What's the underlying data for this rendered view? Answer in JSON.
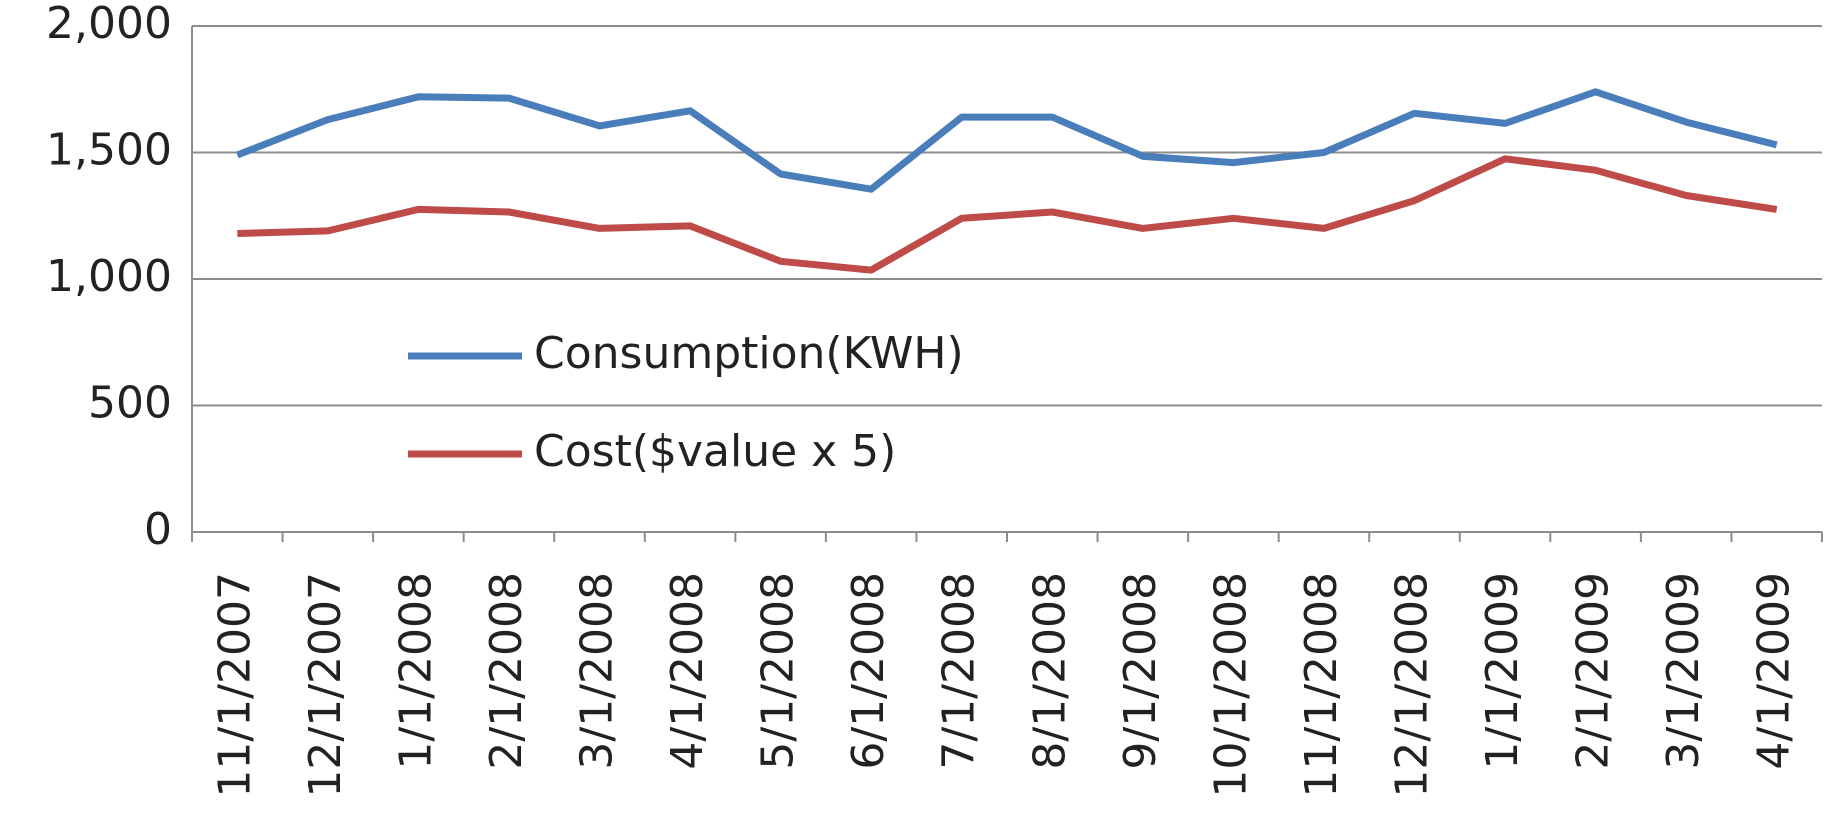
{
  "chart_data": {
    "type": "line",
    "categories": [
      "11/1/2007",
      "12/1/2007",
      "1/1/2008",
      "2/1/2008",
      "3/1/2008",
      "4/1/2008",
      "5/1/2008",
      "6/1/2008",
      "7/1/2008",
      "8/1/2008",
      "9/1/2008",
      "10/1/2008",
      "11/1/2008",
      "12/1/2008",
      "1/1/2009",
      "2/1/2009",
      "3/1/2009",
      "4/1/2009"
    ],
    "series": [
      {
        "name": "Consumption(KWH)",
        "color": "#4a7ebb",
        "values": [
          1490,
          1630,
          1720,
          1715,
          1605,
          1665,
          1415,
          1355,
          1640,
          1640,
          1485,
          1460,
          1500,
          1655,
          1615,
          1740,
          1620,
          1530
        ]
      },
      {
        "name": "Cost($value x 5)",
        "color": "#be4b48",
        "values": [
          1180,
          1190,
          1275,
          1265,
          1200,
          1210,
          1070,
          1035,
          1240,
          1265,
          1200,
          1240,
          1200,
          1310,
          1475,
          1430,
          1330,
          1275
        ]
      }
    ],
    "ylim": [
      0,
      2000
    ],
    "yticks": [
      0,
      {
        "value": 500,
        "label": "500"
      },
      {
        "value": 1000,
        "label": "1,000"
      },
      {
        "value": 1500,
        "label": "1,500"
      },
      {
        "value": 2000,
        "label": "2,000"
      }
    ],
    "grid": true
  }
}
